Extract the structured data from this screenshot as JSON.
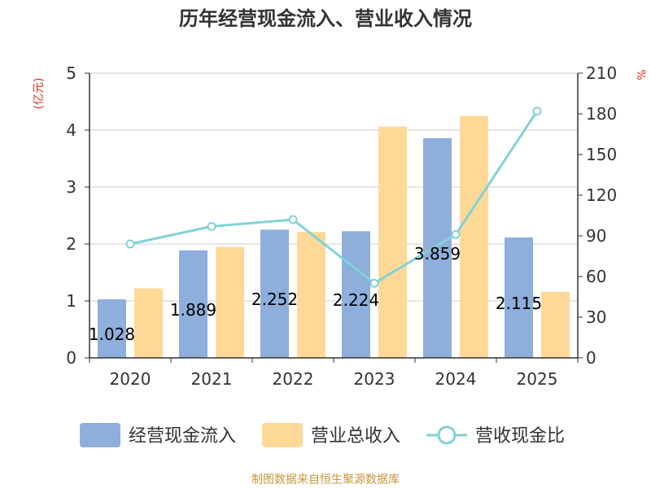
{
  "chart_data": {
    "type": "bar",
    "title": "历年经营现金流入、营业收入情况",
    "categories": [
      "2020",
      "2021",
      "2022",
      "2023",
      "2024",
      "2025"
    ],
    "series": [
      {
        "name": "经营现金流入",
        "type": "bar",
        "axis": "left",
        "values": [
          1.028,
          1.889,
          2.252,
          2.224,
          3.859,
          2.115
        ],
        "labels": [
          "1.028",
          "1.889",
          "2.252",
          "2.224",
          "3.859",
          "2.115"
        ]
      },
      {
        "name": "营业总收入",
        "type": "bar",
        "axis": "left",
        "values": [
          1.22,
          1.95,
          2.21,
          4.06,
          4.25,
          1.16
        ]
      },
      {
        "name": "营收现金比",
        "type": "line",
        "axis": "right",
        "values": [
          84,
          97,
          102,
          55,
          91,
          182
        ]
      }
    ],
    "ylabel_left": "(亿元)",
    "ylabel_right": "%",
    "ylim_left": [
      0,
      5
    ],
    "ylim_right": [
      0,
      210
    ],
    "yticks_left": [
      "0",
      "1",
      "2",
      "3",
      "4",
      "5"
    ],
    "yticks_right": [
      "0",
      "30",
      "60",
      "90",
      "120",
      "150",
      "180",
      "210"
    ],
    "grid": true,
    "legend_position": "bottom",
    "source": "制图数据来自恒生聚源数据库",
    "colors": {
      "bar1": "#8eaedc",
      "bar2": "#ffd897",
      "line": "#82d2d7",
      "grid": "#cccccc",
      "axis": "#333333"
    }
  }
}
